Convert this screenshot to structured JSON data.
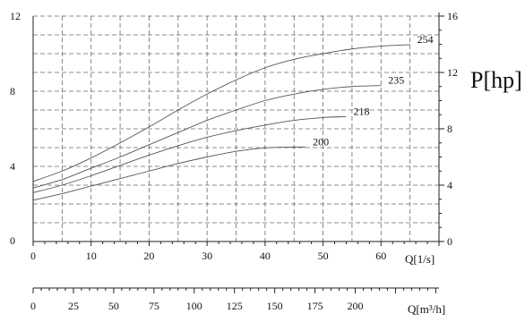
{
  "chart_data": {
    "type": "line",
    "title": "",
    "xlabel": "Q[1/s]",
    "ylabel": "",
    "y2label": "P[hp]",
    "x2label": "Q[m³/h]",
    "xlim": [
      0,
      70
    ],
    "ylim": [
      0,
      12
    ],
    "y2lim": [
      0,
      16
    ],
    "x2lim": [
      0,
      252
    ],
    "x_ticks": [
      "0",
      "10",
      "20",
      "30",
      "40",
      "50",
      "60"
    ],
    "x_tick_values": [
      0,
      10,
      20,
      30,
      40,
      50,
      60
    ],
    "y_ticks": [
      "0",
      "4",
      "8",
      "12"
    ],
    "y_tick_values": [
      0,
      4,
      8,
      12
    ],
    "y2_ticks": [
      "0",
      "4",
      "8",
      "12",
      "16"
    ],
    "y2_tick_values": [
      0,
      4,
      8,
      12,
      16
    ],
    "x2_ticks": [
      "0",
      "25",
      "50",
      "75",
      "100",
      "125",
      "150",
      "175",
      "200"
    ],
    "x2_tick_values": [
      0,
      25,
      50,
      75,
      100,
      125,
      150,
      175,
      200
    ],
    "grid": true,
    "series": [
      {
        "name": "200",
        "x": [
          0,
          5,
          10,
          15,
          20,
          25,
          30,
          35,
          40,
          45,
          47
        ],
        "y": [
          2.2,
          2.55,
          2.95,
          3.35,
          3.75,
          4.15,
          4.5,
          4.8,
          4.98,
          5.03,
          5.03
        ]
      },
      {
        "name": "218",
        "x": [
          0,
          5,
          10,
          15,
          20,
          25,
          30,
          35,
          40,
          45,
          50,
          54
        ],
        "y": [
          2.6,
          3.0,
          3.5,
          4.05,
          4.6,
          5.1,
          5.55,
          5.9,
          6.2,
          6.45,
          6.6,
          6.65
        ]
      },
      {
        "name": "235",
        "x": [
          0,
          5,
          10,
          15,
          20,
          25,
          30,
          35,
          40,
          45,
          50,
          55,
          60
        ],
        "y": [
          2.85,
          3.3,
          3.9,
          4.5,
          5.15,
          5.8,
          6.45,
          7.0,
          7.5,
          7.85,
          8.1,
          8.25,
          8.3
        ]
      },
      {
        "name": "254",
        "x": [
          0,
          5,
          10,
          15,
          20,
          25,
          30,
          35,
          40,
          45,
          50,
          55,
          60,
          65
        ],
        "y": [
          3.2,
          3.75,
          4.45,
          5.25,
          6.1,
          7.0,
          7.85,
          8.6,
          9.25,
          9.7,
          10.0,
          10.25,
          10.4,
          10.48
        ]
      }
    ]
  }
}
